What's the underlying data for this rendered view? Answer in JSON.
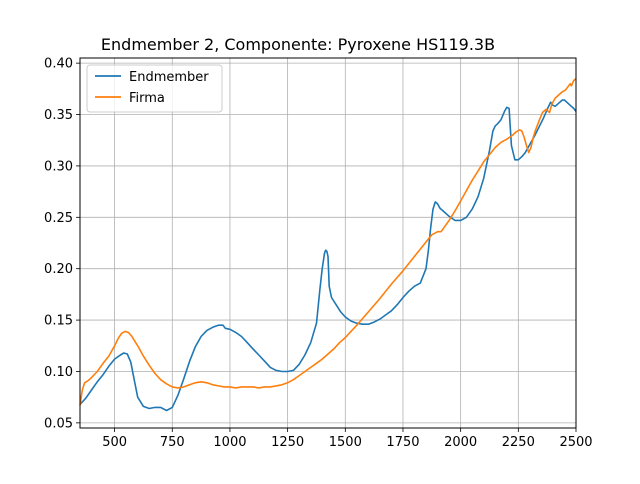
{
  "chart_data": {
    "type": "line",
    "title": "Endmember 2, Componente: Pyroxene HS119.3B",
    "xlabel": "",
    "ylabel": "",
    "xlim": [
      350,
      2500
    ],
    "ylim": [
      0.045,
      0.405
    ],
    "xticks": [
      500,
      750,
      1000,
      1250,
      1500,
      1750,
      2000,
      2250,
      2500
    ],
    "yticks": [
      0.05,
      0.1,
      0.15,
      0.2,
      0.25,
      0.3,
      0.35,
      0.4
    ],
    "grid": true,
    "legend_position": "top-left",
    "series": [
      {
        "name": "Endmember",
        "color": "#1f77b4",
        "x": [
          350,
          375,
          400,
          425,
          450,
          475,
          500,
          525,
          540,
          555,
          570,
          585,
          600,
          625,
          650,
          675,
          700,
          725,
          750,
          775,
          800,
          825,
          850,
          875,
          900,
          925,
          950,
          970,
          980,
          1000,
          1025,
          1050,
          1075,
          1100,
          1125,
          1150,
          1175,
          1200,
          1225,
          1250,
          1275,
          1300,
          1325,
          1350,
          1375,
          1390,
          1400,
          1410,
          1415,
          1420,
          1425,
          1430,
          1440,
          1460,
          1480,
          1500,
          1525,
          1550,
          1575,
          1600,
          1625,
          1650,
          1675,
          1700,
          1725,
          1750,
          1775,
          1800,
          1825,
          1850,
          1860,
          1870,
          1880,
          1890,
          1900,
          1910,
          1925,
          1950,
          1975,
          2000,
          2025,
          2050,
          2075,
          2100,
          2125,
          2140,
          2150,
          2160,
          2175,
          2190,
          2200,
          2210,
          2220,
          2235,
          2250,
          2265,
          2280,
          2300,
          2320,
          2340,
          2360,
          2375,
          2390,
          2400,
          2410,
          2425,
          2440,
          2450,
          2460,
          2475,
          2490,
          2500
        ],
        "values": [
          0.068,
          0.074,
          0.082,
          0.09,
          0.097,
          0.105,
          0.112,
          0.116,
          0.118,
          0.117,
          0.109,
          0.092,
          0.075,
          0.066,
          0.064,
          0.065,
          0.065,
          0.062,
          0.065,
          0.077,
          0.093,
          0.11,
          0.124,
          0.134,
          0.14,
          0.143,
          0.145,
          0.145,
          0.142,
          0.141,
          0.138,
          0.134,
          0.128,
          0.122,
          0.116,
          0.11,
          0.104,
          0.101,
          0.1,
          0.1,
          0.101,
          0.107,
          0.116,
          0.128,
          0.147,
          0.18,
          0.2,
          0.215,
          0.218,
          0.217,
          0.212,
          0.183,
          0.172,
          0.165,
          0.158,
          0.153,
          0.149,
          0.147,
          0.146,
          0.146,
          0.148,
          0.151,
          0.155,
          0.159,
          0.165,
          0.172,
          0.178,
          0.183,
          0.186,
          0.2,
          0.218,
          0.24,
          0.258,
          0.265,
          0.263,
          0.259,
          0.256,
          0.251,
          0.247,
          0.247,
          0.25,
          0.258,
          0.27,
          0.288,
          0.315,
          0.334,
          0.339,
          0.341,
          0.345,
          0.353,
          0.357,
          0.356,
          0.32,
          0.306,
          0.306,
          0.309,
          0.313,
          0.321,
          0.329,
          0.338,
          0.347,
          0.355,
          0.362,
          0.359,
          0.358,
          0.361,
          0.364,
          0.364,
          0.362,
          0.359,
          0.356,
          0.353
        ]
      },
      {
        "name": "Firma",
        "color": "#ff7f0e",
        "x": [
          350,
          360,
          370,
          385,
          400,
          425,
          450,
          475,
          500,
          515,
          530,
          545,
          560,
          575,
          600,
          625,
          650,
          675,
          700,
          725,
          750,
          775,
          800,
          825,
          850,
          875,
          900,
          925,
          950,
          975,
          1000,
          1025,
          1050,
          1075,
          1100,
          1125,
          1150,
          1175,
          1200,
          1225,
          1250,
          1275,
          1300,
          1325,
          1350,
          1375,
          1400,
          1425,
          1450,
          1475,
          1500,
          1550,
          1600,
          1650,
          1700,
          1750,
          1800,
          1850,
          1875,
          1900,
          1915,
          1925,
          1950,
          1975,
          2000,
          2025,
          2050,
          2075,
          2100,
          2125,
          2150,
          2175,
          2200,
          2225,
          2240,
          2255,
          2265,
          2275,
          2285,
          2295,
          2305,
          2315,
          2325,
          2340,
          2355,
          2370,
          2385,
          2395,
          2410,
          2425,
          2440,
          2455,
          2465,
          2475,
          2480,
          2490,
          2500
        ],
        "values": [
          0.067,
          0.082,
          0.089,
          0.091,
          0.094,
          0.1,
          0.108,
          0.115,
          0.125,
          0.132,
          0.137,
          0.139,
          0.138,
          0.134,
          0.125,
          0.115,
          0.106,
          0.098,
          0.092,
          0.088,
          0.085,
          0.084,
          0.085,
          0.087,
          0.089,
          0.09,
          0.089,
          0.087,
          0.086,
          0.085,
          0.085,
          0.084,
          0.085,
          0.085,
          0.085,
          0.084,
          0.085,
          0.085,
          0.086,
          0.087,
          0.089,
          0.092,
          0.096,
          0.1,
          0.104,
          0.108,
          0.112,
          0.117,
          0.122,
          0.128,
          0.133,
          0.145,
          0.158,
          0.171,
          0.185,
          0.198,
          0.212,
          0.226,
          0.233,
          0.236,
          0.236,
          0.239,
          0.247,
          0.256,
          0.266,
          0.276,
          0.286,
          0.295,
          0.304,
          0.311,
          0.318,
          0.323,
          0.326,
          0.33,
          0.333,
          0.335,
          0.334,
          0.328,
          0.32,
          0.313,
          0.318,
          0.328,
          0.335,
          0.344,
          0.352,
          0.355,
          0.352,
          0.36,
          0.366,
          0.369,
          0.372,
          0.374,
          0.377,
          0.38,
          0.378,
          0.383,
          0.385
        ]
      }
    ]
  }
}
